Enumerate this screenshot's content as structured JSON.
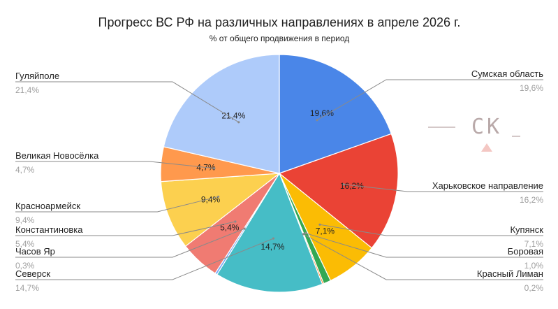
{
  "chart_data": {
    "type": "pie",
    "title": "Прогресс ВС РФ на различных направлениях в апреле 2026 г.",
    "subtitle": "% от общего продвижения в период",
    "slices": [
      {
        "label": "Сумская область",
        "value": 19.6,
        "display": "19,6%",
        "color": "#4a86e8"
      },
      {
        "label": "Харьковское направление",
        "value": 16.2,
        "display": "16,2%",
        "color": "#ea4335"
      },
      {
        "label": "Купянск",
        "value": 7.1,
        "display": "7,1%",
        "color": "#fbbc04"
      },
      {
        "label": "Боровая",
        "value": 1.0,
        "display": "1,0%",
        "color": "#34a853"
      },
      {
        "label": "Красный Лиман",
        "value": 0.2,
        "display": "0,2%",
        "color": "#ff6d01"
      },
      {
        "label": "Северск",
        "value": 14.7,
        "display": "14,7%",
        "color": "#46bdc6"
      },
      {
        "label": "Часов Яр",
        "value": 0.3,
        "display": "0,3%",
        "color": "#7baaf7"
      },
      {
        "label": "Константиновка",
        "value": 5.4,
        "display": "5,4%",
        "color": "#f07b72"
      },
      {
        "label": "Красноармейск",
        "value": 9.4,
        "display": "9,4%",
        "color": "#fcd04f"
      },
      {
        "label": "Великая Новосёлка",
        "value": 4.7,
        "display": "4,7%",
        "color": "#ff994d"
      },
      {
        "label": "Гуляйполе",
        "value": 21.4,
        "display": "21,4%",
        "color": "#aecbfa"
      }
    ]
  },
  "watermark": {
    "text": "СК"
  }
}
